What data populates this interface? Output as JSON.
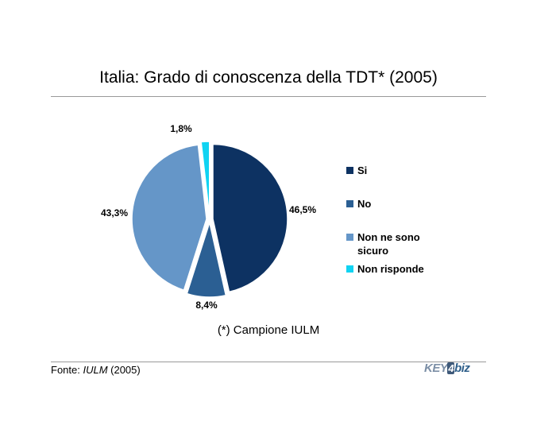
{
  "chart_data": {
    "type": "pie",
    "title": "Italia: Grado di conoscenza della TDT* (2005)",
    "categories": [
      "Si",
      "No",
      "Non ne sono sicuro",
      "Non risponde"
    ],
    "values": [
      46.5,
      8.4,
      43.3,
      1.8
    ],
    "labels": [
      "46,5%",
      "8,4%",
      "43,3%",
      "1,8%"
    ],
    "colors": [
      "#0d3262",
      "#2b5f93",
      "#6596c8",
      "#10d3f2"
    ],
    "legend_position": "right",
    "exploded": true
  },
  "footnote": "(*) Campione IULM",
  "source": {
    "prefix": "Fonte: ",
    "name": "IULM",
    "year": " (2005)"
  },
  "logo": {
    "part1": "KEY",
    "part2": "4",
    "part3": "biz"
  }
}
